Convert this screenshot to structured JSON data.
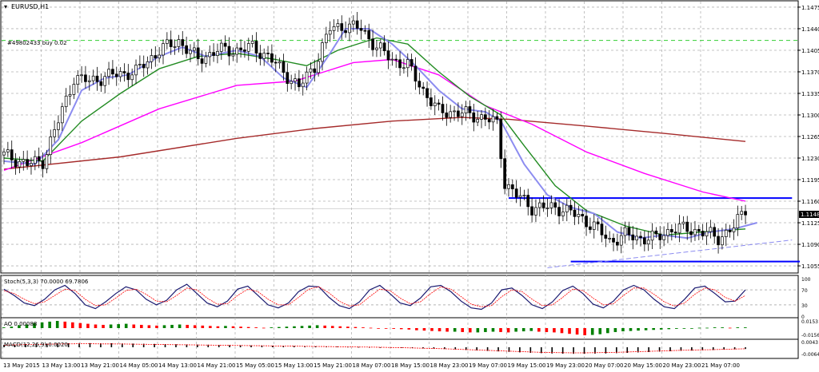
{
  "symbol_title": "EURUSD,H1",
  "order_label": "#49802433 buy 0.02",
  "current_price_label": "1.1148",
  "colors": {
    "background": "#ffffff",
    "grid": "#b4b4b4",
    "axis": "#000000",
    "candle": "#000000",
    "ma_slow": "#a52a2a",
    "ma_mid": "#ff00ff",
    "ma_fast": "#228b22",
    "ma_faster": "#8c8cf0",
    "levels": "#0000ff",
    "support_trend": "#8c8cf0",
    "order_line": "#32cd32",
    "stoch_main": "#191970",
    "stoch_signal": "#ff0000",
    "osc_up": "#008000",
    "osc_down": "#ff0000",
    "macd_hist": "#000000",
    "price_tag": "#000000"
  },
  "chart_data": [
    {
      "type": "candlestick",
      "title": "EURUSD,H1",
      "y_ticks": [
        "1.1475",
        "1.1440",
        "1.1405",
        "1.1370",
        "1.1335",
        "1.1300",
        "1.1265",
        "1.1230",
        "1.1195",
        "1.1160",
        "1.1125",
        "1.1090",
        "1.1055"
      ],
      "ylim": [
        1.1046,
        1.1484
      ],
      "x_tick_labels": [
        "13 May 2015",
        "13 May 13:00",
        "13 May 21:00",
        "14 May 05:00",
        "14 May 13:00",
        "14 May 21:00",
        "15 May 05:00",
        "15 May 13:00",
        "15 May 21:00",
        "18 May 07:00",
        "18 May 15:00",
        "18 May 23:00",
        "19 May 07:00",
        "19 May 15:00",
        "19 May 23:00",
        "20 May 07:00",
        "20 May 15:00",
        "20 May 23:00",
        "21 May 07:00"
      ],
      "horizontal_levels": [
        1.1165,
        1.1062
      ],
      "order_level": 1.1421,
      "current_price": 1.1148,
      "trend_line": {
        "from": 1.1052,
        "to": 1.1097
      },
      "close_path": [
        [
          0,
          1.1235
        ],
        [
          6,
          1.122
        ],
        [
          10,
          1.1225
        ],
        [
          14,
          1.129
        ],
        [
          18,
          1.136
        ],
        [
          22,
          1.1355
        ],
        [
          28,
          1.1365
        ],
        [
          34,
          1.137
        ],
        [
          40,
          1.1405
        ],
        [
          45,
          1.142
        ],
        [
          50,
          1.139
        ],
        [
          55,
          1.1405
        ],
        [
          60,
          1.1405
        ],
        [
          64,
          1.141
        ],
        [
          68,
          1.1395
        ],
        [
          72,
          1.137
        ],
        [
          76,
          1.1345
        ],
        [
          80,
          1.138
        ],
        [
          84,
          1.144
        ],
        [
          88,
          1.1445
        ],
        [
          92,
          1.144
        ],
        [
          96,
          1.141
        ],
        [
          100,
          1.139
        ],
        [
          104,
          1.138
        ],
        [
          108,
          1.134
        ],
        [
          112,
          1.1305
        ],
        [
          116,
          1.1305
        ],
        [
          120,
          1.13
        ],
        [
          124,
          1.1295
        ],
        [
          127,
          1.1285
        ],
        [
          129,
          1.119
        ],
        [
          132,
          1.117
        ],
        [
          136,
          1.115
        ],
        [
          140,
          1.115
        ],
        [
          144,
          1.1148
        ],
        [
          148,
          1.1135
        ],
        [
          152,
          1.112
        ],
        [
          156,
          1.1095
        ],
        [
          160,
          1.1105
        ],
        [
          164,
          1.11
        ],
        [
          168,
          1.11
        ],
        [
          172,
          1.1115
        ],
        [
          176,
          1.1115
        ],
        [
          180,
          1.111
        ],
        [
          184,
          1.11
        ],
        [
          188,
          1.1118
        ],
        [
          191,
          1.1148
        ]
      ],
      "series": [
        {
          "name": "",
          "color_key": "ma_slow",
          "points": [
            [
              0,
              1.1212
            ],
            [
              30,
              1.1232
            ],
            [
              60,
              1.1262
            ],
            [
              80,
              1.1278
            ],
            [
              100,
              1.129
            ],
            [
              118,
              1.1296
            ],
            [
              130,
              1.1293
            ],
            [
              150,
              1.1282
            ],
            [
              170,
              1.127
            ],
            [
              191,
              1.1257
            ]
          ]
        },
        {
          "name": "",
          "color_key": "ma_mid",
          "points": [
            [
              0,
              1.121
            ],
            [
              20,
              1.1255
            ],
            [
              40,
              1.131
            ],
            [
              60,
              1.1348
            ],
            [
              75,
              1.1355
            ],
            [
              90,
              1.1385
            ],
            [
              100,
              1.139
            ],
            [
              112,
              1.1365
            ],
            [
              124,
              1.1315
            ],
            [
              136,
              1.1285
            ],
            [
              150,
              1.124
            ],
            [
              165,
              1.1205
            ],
            [
              180,
              1.1175
            ],
            [
              191,
              1.116
            ]
          ]
        },
        {
          "name": "",
          "color_key": "ma_fast",
          "points": [
            [
              0,
              1.123
            ],
            [
              10,
              1.1225
            ],
            [
              20,
              1.129
            ],
            [
              30,
              1.1335
            ],
            [
              40,
              1.1375
            ],
            [
              50,
              1.1395
            ],
            [
              60,
              1.14
            ],
            [
              70,
              1.139
            ],
            [
              78,
              1.138
            ],
            [
              86,
              1.1405
            ],
            [
              96,
              1.1425
            ],
            [
              104,
              1.1415
            ],
            [
              112,
              1.137
            ],
            [
              120,
              1.133
            ],
            [
              128,
              1.13
            ],
            [
              134,
              1.125
            ],
            [
              142,
              1.1185
            ],
            [
              150,
              1.1145
            ],
            [
              160,
              1.112
            ],
            [
              170,
              1.1105
            ],
            [
              180,
              1.111
            ],
            [
              191,
              1.1115
            ]
          ]
        },
        {
          "name": "",
          "color_key": "ma_faster",
          "points": [
            [
              0,
              1.1225
            ],
            [
              8,
              1.122
            ],
            [
              14,
              1.126
            ],
            [
              20,
              1.134
            ],
            [
              26,
              1.136
            ],
            [
              32,
              1.1365
            ],
            [
              40,
              1.1395
            ],
            [
              46,
              1.141
            ],
            [
              52,
              1.1395
            ],
            [
              60,
              1.1405
            ],
            [
              66,
              1.1395
            ],
            [
              72,
              1.136
            ],
            [
              78,
              1.1345
            ],
            [
              84,
              1.14
            ],
            [
              88,
              1.144
            ],
            [
              94,
              1.144
            ],
            [
              100,
              1.1415
            ],
            [
              106,
              1.138
            ],
            [
              112,
              1.134
            ],
            [
              118,
              1.131
            ],
            [
              124,
              1.1305
            ],
            [
              128,
              1.129
            ],
            [
              134,
              1.122
            ],
            [
              140,
              1.117
            ],
            [
              146,
              1.115
            ],
            [
              152,
              1.114
            ],
            [
              158,
              1.111
            ],
            [
              164,
              1.11
            ],
            [
              170,
              1.1105
            ],
            [
              176,
              1.11
            ],
            [
              182,
              1.111
            ],
            [
              188,
              1.1115
            ],
            [
              194,
              1.1125
            ]
          ]
        }
      ]
    },
    {
      "type": "line",
      "title": "Stoch(5,3,3) 70.0000 69.7806",
      "y_ticks": [
        "100",
        "70",
        "30",
        "0"
      ],
      "ylim": [
        0,
        100
      ],
      "levels": [
        70,
        30
      ],
      "series": [
        {
          "name": "",
          "color_key": "stoch_main",
          "values": [
            72,
            55,
            35,
            28,
            45,
            70,
            82,
            60,
            30,
            20,
            38,
            60,
            78,
            70,
            45,
            30,
            42,
            70,
            85,
            60,
            35,
            25,
            40,
            72,
            80,
            55,
            30,
            22,
            35,
            65,
            80,
            78,
            50,
            28,
            20,
            38,
            70,
            82,
            60,
            35,
            28,
            48,
            78,
            82,
            65,
            40,
            22,
            18,
            35,
            70,
            75,
            55,
            30,
            20,
            38,
            68,
            80,
            60,
            32,
            22,
            40,
            70,
            82,
            70,
            45,
            25,
            20,
            45,
            75,
            80,
            60,
            38,
            40,
            70
          ]
        },
        {
          "name": "",
          "color_key": "stoch_signal",
          "values": [
            68,
            60,
            45,
            33,
            38,
            55,
            72,
            68,
            45,
            28,
            30,
            48,
            68,
            72,
            58,
            40,
            38,
            55,
            75,
            70,
            48,
            32,
            33,
            55,
            72,
            65,
            45,
            30,
            30,
            50,
            72,
            78,
            62,
            40,
            27,
            30,
            52,
            72,
            68,
            48,
            33,
            38,
            60,
            78,
            72,
            52,
            32,
            25,
            28,
            52,
            70,
            65,
            45,
            28,
            30,
            50,
            72,
            68,
            48,
            30,
            33,
            55,
            75,
            75,
            58,
            38,
            27,
            35,
            58,
            75,
            70,
            50,
            40,
            55
          ]
        }
      ]
    },
    {
      "type": "bar",
      "title": "AO 0.00088",
      "y_ticks": [
        "0.0153",
        "-0.0156"
      ],
      "values": [
        0.1,
        0.2,
        0.4,
        0.5,
        0.7,
        0.8,
        0.9,
        1.0,
        0.9,
        0.8,
        0.7,
        0.6,
        0.5,
        0.45,
        0.5,
        0.55,
        0.6,
        0.5,
        0.45,
        0.4,
        0.35,
        0.4,
        0.45,
        0.5,
        0.45,
        0.4,
        0.35,
        0.3,
        0.25,
        0.3,
        0.25,
        0.2,
        0.15,
        0.1,
        0.05,
        0.1,
        0.15,
        0.2,
        0.25,
        0.3,
        0.35,
        0.4,
        0.35,
        0.3,
        0.25,
        0.2,
        0.15,
        0.1,
        0.05,
        0.0,
        -0.05,
        -0.1,
        -0.15,
        -0.2,
        -0.3,
        -0.35,
        -0.4,
        -0.45,
        -0.5,
        -0.5,
        -0.55,
        -0.6,
        -0.6,
        -0.55,
        -0.5,
        -0.55,
        -0.6,
        -0.5,
        -0.45,
        -0.4,
        -0.5,
        -0.55,
        -0.6,
        -0.7,
        -0.8,
        -0.9,
        -1.0,
        -0.95,
        -0.85,
        -0.7,
        -0.55,
        -0.45,
        -0.4,
        -0.35,
        -0.3,
        -0.25,
        -0.2,
        -0.15,
        -0.1,
        -0.05,
        0.0,
        0.05,
        0.05,
        0.1,
        0.1,
        0.05,
        0.1,
        0.1
      ]
    },
    {
      "type": "bar",
      "title": "MACD(12,26,9) 0.0020",
      "y_ticks": [
        "0.0043",
        "-0.0064"
      ],
      "values": [
        0.3,
        0.35,
        0.4,
        0.42,
        0.45,
        0.48,
        0.5,
        0.52,
        0.52,
        0.5,
        0.5,
        0.48,
        0.46,
        0.44,
        0.42,
        0.4,
        0.38,
        0.36,
        0.34,
        0.32,
        0.3,
        0.28,
        0.26,
        0.24,
        0.22,
        0.2,
        0.18,
        0.16,
        0.14,
        0.12,
        0.1,
        0.08,
        0.06,
        0.04,
        0.02,
        0.0,
        -0.03,
        -0.06,
        -0.1,
        -0.14,
        -0.18,
        -0.22,
        -0.28,
        -0.34,
        -0.4,
        -0.46,
        -0.52,
        -0.58,
        -0.64,
        -0.7,
        -0.74,
        -0.78,
        -0.8,
        -0.82,
        -0.82,
        -0.8,
        -0.78,
        -0.74,
        -0.7,
        -0.65,
        -0.6,
        -0.55,
        -0.5,
        -0.45,
        -0.42,
        -0.38,
        -0.35,
        -0.3,
        -0.26,
        -0.22
      ]
    }
  ]
}
